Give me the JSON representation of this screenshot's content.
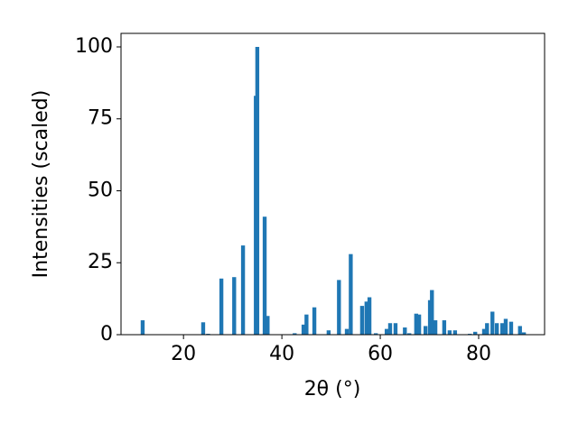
{
  "chart_data": {
    "type": "bar",
    "xlabel": "2θ (°)",
    "ylabel": "Intensities (scaled)",
    "color": "#1f77b4",
    "x": [
      11.7,
      24.0,
      25.0,
      27.7,
      30.3,
      32.1,
      34.7,
      35.0,
      36.5,
      37.1,
      42.6,
      44.4,
      45.0,
      46.6,
      49.5,
      51.6,
      53.2,
      54.0,
      56.3,
      57.2,
      57.8,
      59.1,
      61.3,
      62.0,
      63.1,
      65.0,
      65.9,
      67.3,
      67.9,
      69.2,
      70.1,
      70.5,
      71.2,
      73.0,
      74.1,
      75.2,
      78.2,
      79.3,
      81.1,
      81.7,
      82.8,
      83.7,
      84.8,
      85.5,
      86.6,
      88.4,
      89.2
    ],
    "values": [
      5,
      4.3,
      0.3,
      19.5,
      20,
      31,
      83,
      100,
      41,
      6.5,
      0.5,
      3.5,
      7,
      9.5,
      1.5,
      19,
      2,
      28,
      10,
      11.5,
      13,
      0.5,
      2,
      4,
      4,
      2.5,
      0.5,
      7.3,
      7,
      3,
      12,
      15.5,
      5,
      5,
      1.5,
      1.5,
      0.3,
      1,
      2,
      4,
      8,
      4,
      4,
      5.5,
      4.5,
      3,
      0.8
    ],
    "xlim": [
      7.3,
      93.4
    ],
    "ylim": [
      0,
      104.7
    ],
    "xticks": [
      20,
      40,
      60,
      80
    ],
    "yticks": [
      0,
      25,
      50,
      75,
      100
    ]
  }
}
